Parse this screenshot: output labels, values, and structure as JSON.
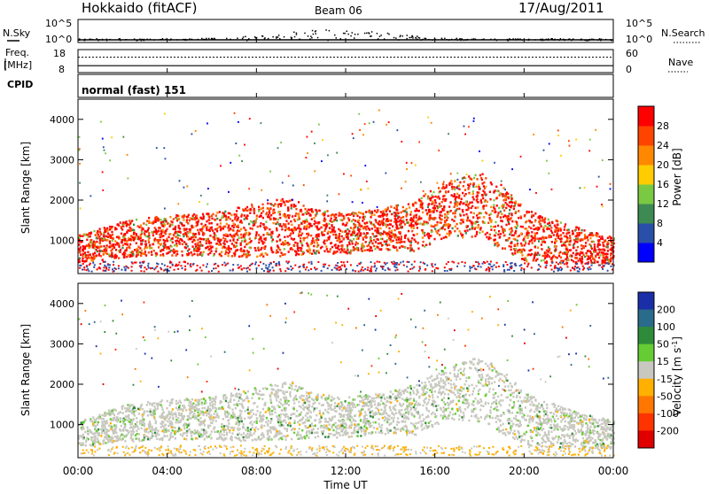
{
  "header": {
    "station": "Hokkaido (fitACF)",
    "beam": "Beam 06",
    "date": "17/Aug/2011"
  },
  "noise_panel": {
    "left_label": "N.Sky",
    "right_label": "N.Search",
    "left_ticks": [
      "10^5",
      "10^0"
    ],
    "right_ticks": [
      "10^5",
      "10^0"
    ]
  },
  "freq_panel": {
    "left_label_1": "Freq.",
    "left_label_2": "[MHz]",
    "right_label": "Nave",
    "left_ticks": [
      "18",
      "8"
    ],
    "right_ticks": [
      "60",
      "0"
    ],
    "freq_mhz": 11,
    "nave": 40
  },
  "cpid_panel": {
    "label": "CPID",
    "program": "normal (fast) 151"
  },
  "axes": {
    "x_label": "Time UT",
    "x_ticks": [
      "00:00",
      "04:00",
      "08:00",
      "12:00",
      "16:00",
      "20:00",
      "00:00"
    ],
    "x_tick_hours": [
      0,
      4,
      8,
      12,
      16,
      20,
      24
    ],
    "y_label": "Slant Range [km]",
    "y_ticks": [
      "1000",
      "2000",
      "3000",
      "4000"
    ],
    "y_tick_values": [
      1000,
      2000,
      3000,
      4000
    ],
    "ylim": [
      180,
      4500
    ],
    "xlim": [
      0,
      24
    ]
  },
  "power_scale": {
    "label": "Power [dB]",
    "ticks": [
      "4",
      "8",
      "12",
      "16",
      "20",
      "24",
      "28"
    ],
    "range": [
      0,
      32
    ],
    "colors": [
      "#0000ff",
      "#2a4fa8",
      "#3d8a52",
      "#7ac943",
      "#ffcc00",
      "#ff8800",
      "#ff4400",
      "#ff0000"
    ]
  },
  "velocity_scale": {
    "label": "Velocity [m s",
    "label_sup": "-1",
    "label_end": "]",
    "ticks": [
      "200",
      "100",
      "50",
      "15",
      "-15",
      "-50",
      "-100",
      "-200"
    ],
    "colors": [
      "#1a2ea8",
      "#2a6a8a",
      "#2e8b3a",
      "#66cc33",
      "#c8c8c0",
      "#ffb000",
      "#ff7700",
      "#ff3300",
      "#e00000"
    ]
  },
  "chart_data": {
    "type": "heatmap",
    "x": "time UT (hours)",
    "y": "slant range (km)",
    "bands": [
      {
        "name": "main",
        "segments": [
          {
            "t": 0,
            "lo": 480,
            "hi": 1150
          },
          {
            "t": 2,
            "lo": 600,
            "hi": 1500
          },
          {
            "t": 4,
            "lo": 650,
            "hi": 1650
          },
          {
            "t": 6,
            "lo": 650,
            "hi": 1700
          },
          {
            "t": 8,
            "lo": 600,
            "hi": 1950
          },
          {
            "t": 9.5,
            "lo": 650,
            "hi": 2100
          },
          {
            "t": 10.5,
            "lo": 700,
            "hi": 1800
          },
          {
            "t": 12,
            "lo": 700,
            "hi": 1700
          },
          {
            "t": 13.5,
            "lo": 800,
            "hi": 1800
          },
          {
            "t": 15,
            "lo": 750,
            "hi": 2000
          },
          {
            "t": 16.5,
            "lo": 1100,
            "hi": 2500
          },
          {
            "t": 18,
            "lo": 1100,
            "hi": 2700
          },
          {
            "t": 19,
            "lo": 800,
            "hi": 2400
          },
          {
            "t": 20,
            "lo": 500,
            "hi": 1800
          },
          {
            "t": 22,
            "lo": 450,
            "hi": 1400
          },
          {
            "t": 24,
            "lo": 450,
            "hi": 1100
          }
        ]
      }
    ]
  }
}
